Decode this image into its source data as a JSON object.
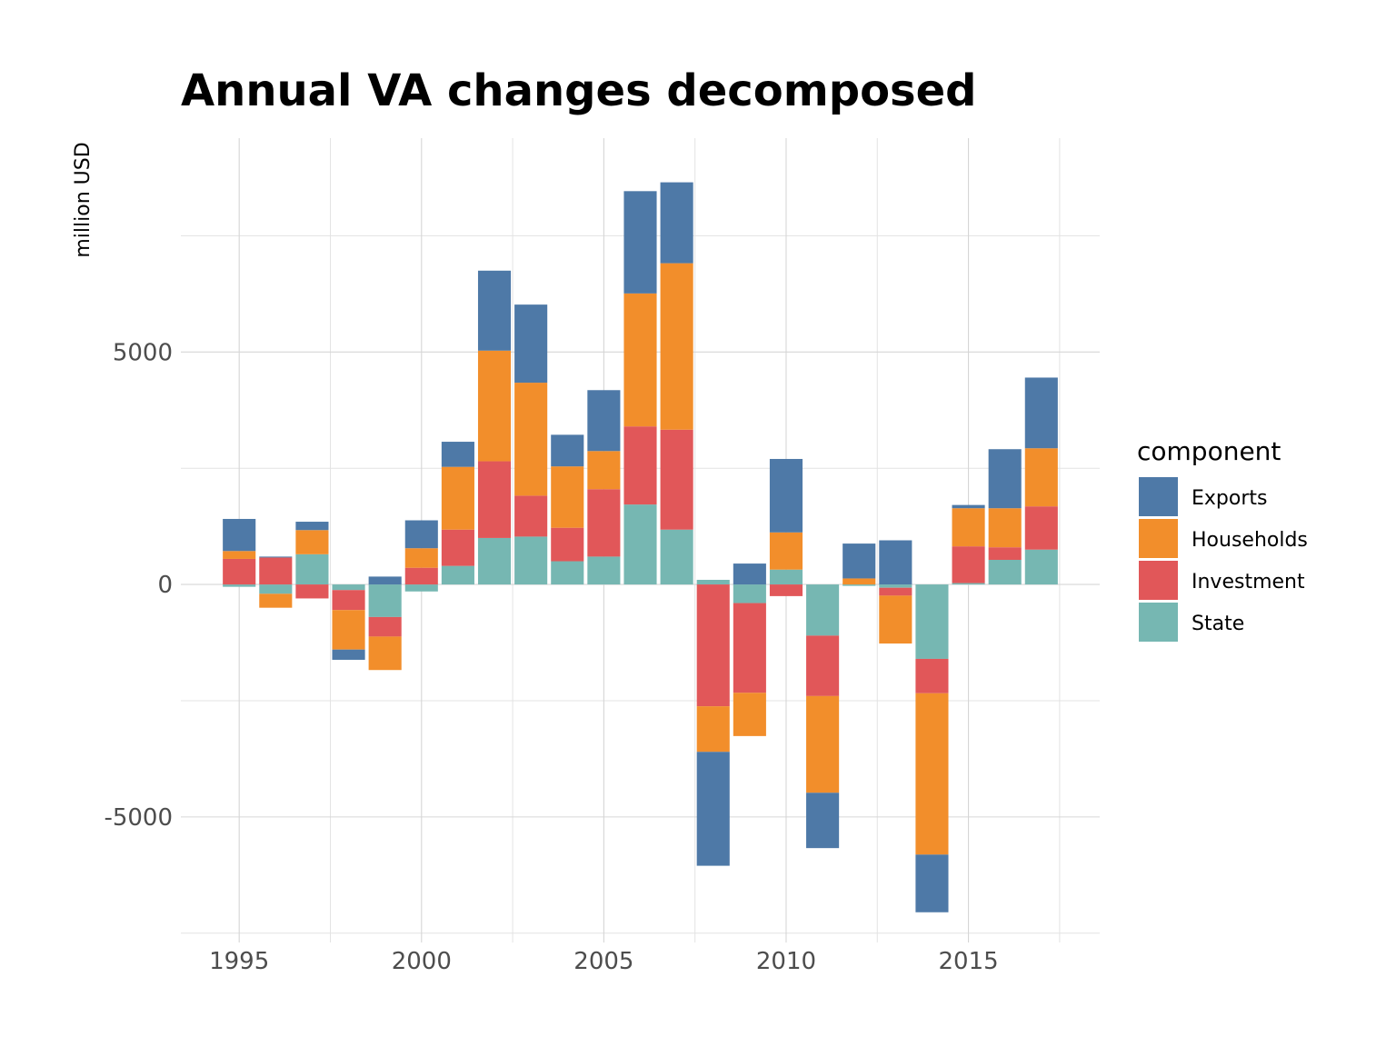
{
  "chart_data": {
    "type": "bar",
    "stacked": true,
    "title": "Annual VA changes decomposed",
    "xlabel": "",
    "ylabel": "million USD",
    "x": [
      1995,
      1996,
      1997,
      1998,
      1999,
      2000,
      2001,
      2002,
      2003,
      2004,
      2005,
      2006,
      2007,
      2008,
      2009,
      2010,
      2011,
      2012,
      2013,
      2014,
      2015,
      2016,
      2017
    ],
    "xlim": [
      1993.4,
      2018.6
    ],
    "ylim": [
      -7700,
      9600
    ],
    "x_ticks": [
      1995,
      2000,
      2005,
      2010,
      2015
    ],
    "x_tick_labels": [
      "1995",
      "2000",
      "2005",
      "2010",
      "2015"
    ],
    "x_minor_ticks": [
      1997.5,
      2002.5,
      2007.5,
      2012.5,
      2017.5
    ],
    "y_ticks": [
      -5000,
      0,
      5000
    ],
    "y_tick_labels": [
      "-5000",
      "0",
      "5000"
    ],
    "y_minor_ticks": [
      -7500,
      -2500,
      2500,
      7500
    ],
    "grid": true,
    "legend": {
      "title": "component",
      "position": "right"
    },
    "series": [
      {
        "name": "State",
        "color": "#76b7b2",
        "values": [
          -50,
          -200,
          650,
          -120,
          -700,
          -150,
          400,
          1000,
          1030,
          500,
          600,
          1720,
          1180,
          100,
          -400,
          320,
          -1100,
          -30,
          -70,
          -1600,
          30,
          530,
          750
        ]
      },
      {
        "name": "Investment",
        "color": "#e15759",
        "values": [
          550,
          580,
          -300,
          -430,
          -420,
          360,
          780,
          1650,
          880,
          720,
          1450,
          1680,
          2150,
          -2620,
          -1930,
          -250,
          -1300,
          0,
          -170,
          -740,
          790,
          270,
          930
        ]
      },
      {
        "name": "Households",
        "color": "#f28e2b",
        "values": [
          170,
          -300,
          520,
          -850,
          -720,
          420,
          1350,
          2380,
          2430,
          1320,
          820,
          2860,
          3580,
          -980,
          -930,
          800,
          -2080,
          130,
          -1030,
          -3470,
          820,
          840,
          1250
        ]
      },
      {
        "name": "Exports",
        "color": "#4e79a7",
        "values": [
          690,
          20,
          180,
          -220,
          170,
          600,
          540,
          1720,
          1680,
          680,
          1310,
          2200,
          1740,
          -2450,
          450,
          1580,
          -1190,
          750,
          950,
          -1240,
          70,
          1270,
          1520
        ]
      }
    ]
  }
}
